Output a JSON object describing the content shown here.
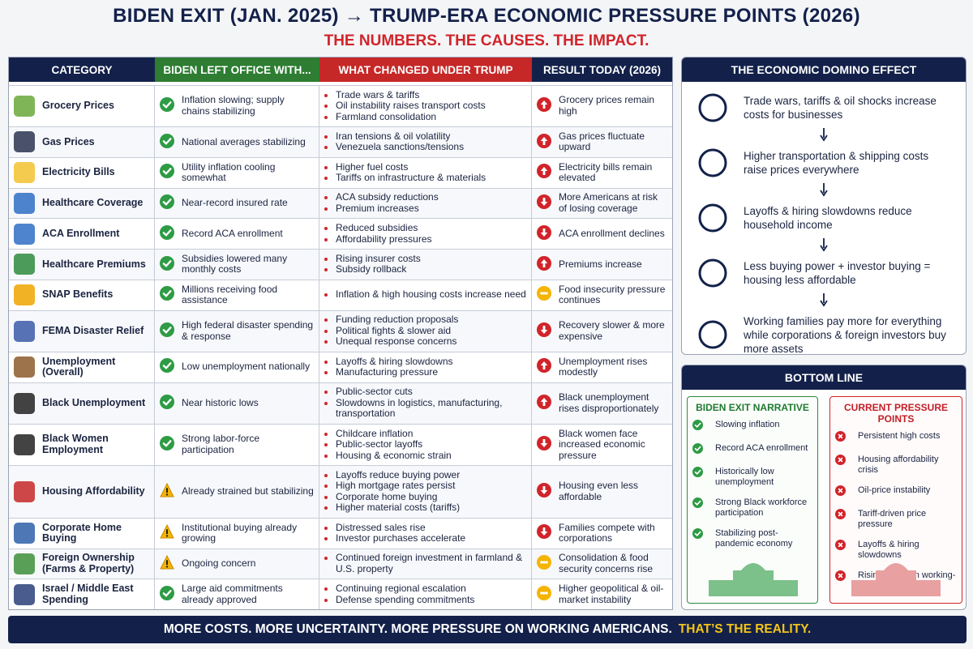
{
  "header": {
    "title": "BIDEN EXIT (JAN. 2025) → TRUMP-ERA ECONOMIC PRESSURE POINTS (2026)",
    "subtitle": "THE NUMBERS. THE CAUSES. THE IMPACT."
  },
  "table": {
    "columns": [
      "CATEGORY",
      "BIDEN LEFT OFFICE WITH...",
      "WHAT CHANGED UNDER TRUMP",
      "RESULT TODAY (2026)"
    ],
    "rows": [
      {
        "category": "Grocery Prices",
        "biden": "Inflation slowing; supply chains stabilizing",
        "biden_icon": "check",
        "changes": [
          "Trade wars & tariffs",
          "Oil instability raises transport costs",
          "Farmland consolidation"
        ],
        "result": "Grocery prices remain high",
        "result_icon": "up"
      },
      {
        "category": "Gas Prices",
        "biden": "National averages stabilizing",
        "biden_icon": "check",
        "changes": [
          "Iran tensions & oil volatility",
          "Venezuela sanctions/tensions"
        ],
        "result": "Gas prices fluctuate upward",
        "result_icon": "up"
      },
      {
        "category": "Electricity Bills",
        "biden": "Utility inflation cooling somewhat",
        "biden_icon": "check",
        "changes": [
          "Higher fuel costs",
          "Tariffs on infrastructure & materials"
        ],
        "result": "Electricity bills remain elevated",
        "result_icon": "up"
      },
      {
        "category": "Healthcare Coverage",
        "biden": "Near-record insured rate",
        "biden_icon": "check",
        "changes": [
          "ACA subsidy reductions",
          "Premium increases"
        ],
        "result": "More Americans at risk of losing coverage",
        "result_icon": "down"
      },
      {
        "category": "ACA Enrollment",
        "biden": "Record ACA enrollment",
        "biden_icon": "check",
        "changes": [
          "Reduced subsidies",
          "Affordability pressures"
        ],
        "result": "ACA enrollment declines",
        "result_icon": "down"
      },
      {
        "category": "Healthcare Premiums",
        "biden": "Subsidies lowered many monthly costs",
        "biden_icon": "check",
        "changes": [
          "Rising insurer costs",
          "Subsidy rollback"
        ],
        "result": "Premiums increase",
        "result_icon": "up"
      },
      {
        "category": "SNAP Benefits",
        "biden": "Millions receiving food assistance",
        "biden_icon": "check",
        "changes": [
          "Inflation & high housing costs increase need"
        ],
        "result": "Food insecurity pressure continues",
        "result_icon": "neutral"
      },
      {
        "category": "FEMA Disaster Relief",
        "biden": "High federal disaster spending & response",
        "biden_icon": "check",
        "changes": [
          "Funding reduction proposals",
          "Political fights & slower aid",
          "Unequal response concerns"
        ],
        "result": "Recovery slower & more expensive",
        "result_icon": "down"
      },
      {
        "category": "Unemployment (Overall)",
        "biden": "Low unemployment nationally",
        "biden_icon": "check",
        "changes": [
          "Layoffs & hiring slowdowns",
          "Manufacturing pressure"
        ],
        "result": "Unemployment rises modestly",
        "result_icon": "up"
      },
      {
        "category": "Black Unemployment",
        "biden": "Near historic lows",
        "biden_icon": "check",
        "changes": [
          "Public-sector cuts",
          "Slowdowns in logistics, manufacturing, transportation"
        ],
        "result": "Black unemployment rises disproportionately",
        "result_icon": "up"
      },
      {
        "category": "Black Women Employment",
        "biden": "Strong labor-force participation",
        "biden_icon": "check",
        "changes": [
          "Childcare inflation",
          "Public-sector layoffs",
          "Housing & economic strain"
        ],
        "result": "Black women face increased economic pressure",
        "result_icon": "down"
      },
      {
        "category": "Housing Affordability",
        "biden": "Already strained but stabilizing",
        "biden_icon": "warning",
        "changes": [
          "Layoffs reduce buying power",
          "High mortgage rates persist",
          "Corporate home buying",
          "Higher material costs (tariffs)"
        ],
        "result": "Housing even less affordable",
        "result_icon": "down"
      },
      {
        "category": "Corporate Home Buying",
        "biden": "Institutional buying already growing",
        "biden_icon": "warning",
        "changes": [
          "Distressed sales rise",
          "Investor purchases accelerate"
        ],
        "result": "Families compete with corporations",
        "result_icon": "down"
      },
      {
        "category": "Foreign Ownership (Farms & Property)",
        "biden": "Ongoing concern",
        "biden_icon": "warning",
        "changes": [
          "Continued foreign investment in farmland & U.S. property"
        ],
        "result": "Consolidation & food security concerns rise",
        "result_icon": "neutral"
      },
      {
        "category": "Israel / Middle East Spending",
        "biden": "Large aid commitments already approved",
        "biden_icon": "check",
        "changes": [
          "Continuing regional escalation",
          "Defense spending commitments"
        ],
        "result": "Higher geopolitical & oil-market instability",
        "result_icon": "neutral"
      }
    ]
  },
  "domino": {
    "title": "THE ECONOMIC DOMINO EFFECT",
    "steps": [
      "Trade wars, tariffs & oil shocks increase costs for businesses",
      "Higher transportation & shipping costs raise prices everywhere",
      "Layoffs & hiring slowdowns reduce household income",
      "Less buying power + investor buying = housing less affordable",
      "Working families pay more for everything while corporations & foreign investors buy more assets"
    ]
  },
  "bottom_line": {
    "title": "BOTTOM LINE",
    "left": {
      "title": "BIDEN EXIT NARRATIVE",
      "items": [
        "Slowing inflation",
        "Record ACA enrollment",
        "Historically low unemployment",
        "Strong Black workforce participation",
        "Stabilizing post-pandemic economy"
      ]
    },
    "right": {
      "title": "CURRENT PRESSURE POINTS",
      "items": [
        "Persistent high costs",
        "Housing affordability crisis",
        "Oil-price instability",
        "Tariff-driven price pressure",
        "Layoffs & hiring slowdowns",
        "Rising strain on working-class households"
      ]
    }
  },
  "footer": {
    "main": "MORE COSTS. MORE UNCERTAINTY. MORE PRESSURE ON WORKING AMERICANS.",
    "highlight": "THAT’S THE REALITY."
  }
}
